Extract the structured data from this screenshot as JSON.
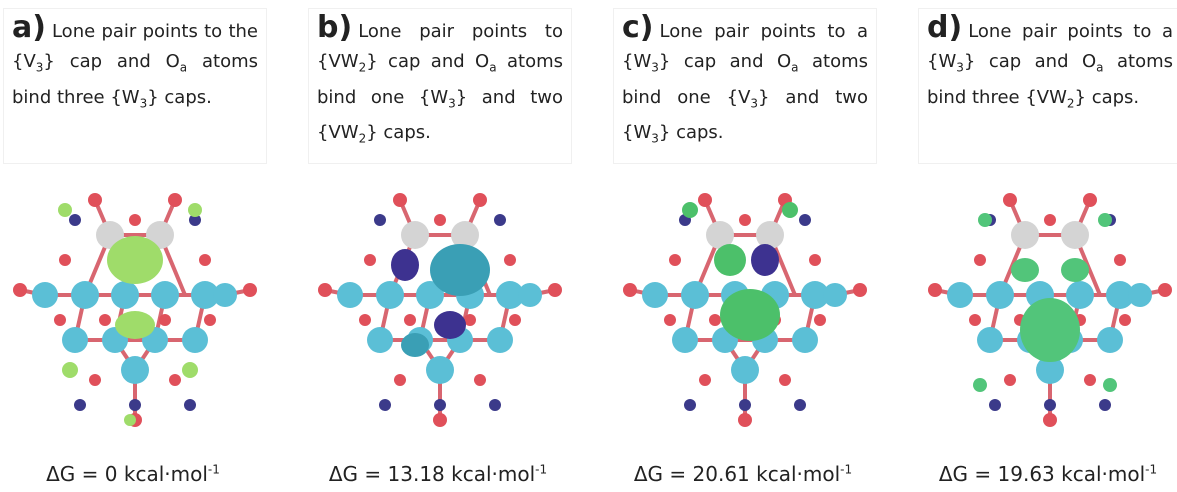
{
  "panels": [
    {
      "label": "a)",
      "caption": [
        "Lone pair points to the {V",
        "3",
        "} cap and O",
        "a",
        " atoms bind three {W",
        "3",
        "} caps."
      ],
      "energy": {
        "prefix": "ΔG = ",
        "value": "0",
        "unit": " kcal·mol",
        "exponent": "-1"
      }
    },
    {
      "label": "b)",
      "caption": [
        "Lone pair points to {VW",
        "2",
        "} cap and O",
        "a",
        " atoms bind one {W",
        "3",
        "} and two {VW",
        "2",
        "} caps."
      ],
      "energy": {
        "prefix": "ΔG = ",
        "value": "13.18",
        "unit": " kcal·mol",
        "exponent": "-1"
      }
    },
    {
      "label": "c)",
      "caption": [
        "Lone pair points to a {W",
        "3",
        "} cap and O",
        "a",
        " atoms bind one {V",
        "3",
        "} and two {W",
        "3",
        "} caps."
      ],
      "energy": {
        "prefix": "ΔG = ",
        "value": "20.61",
        "unit": " kcal·mol",
        "exponent": "-1"
      }
    },
    {
      "label": "d)",
      "caption": [
        "Lone pair points to a {W",
        "3",
        "} cap and O",
        "a",
        " atoms bind three {VW",
        "2",
        "} caps."
      ],
      "energy": {
        "prefix": "ΔG = ",
        "value": "19.63",
        "unit": " kcal·mol",
        "exponent": "-1"
      }
    }
  ]
}
